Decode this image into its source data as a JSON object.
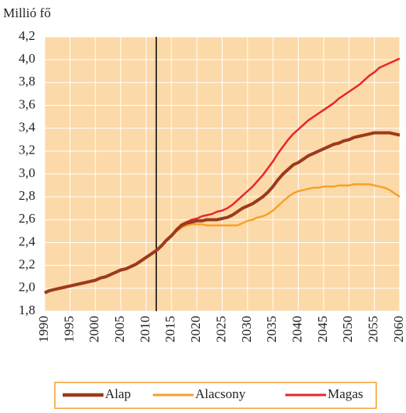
{
  "chart_data": {
    "type": "line",
    "y_axis_label": "Millió fő",
    "x": [
      1990,
      1991,
      1992,
      1993,
      1994,
      1995,
      1996,
      1997,
      1998,
      1999,
      2000,
      2001,
      2002,
      2003,
      2004,
      2005,
      2006,
      2007,
      2008,
      2009,
      2010,
      2011,
      2012,
      2013,
      2014,
      2015,
      2016,
      2017,
      2018,
      2019,
      2020,
      2021,
      2022,
      2023,
      2024,
      2025,
      2026,
      2027,
      2028,
      2029,
      2030,
      2031,
      2032,
      2033,
      2034,
      2035,
      2036,
      2037,
      2038,
      2039,
      2040,
      2041,
      2042,
      2043,
      2044,
      2045,
      2046,
      2047,
      2048,
      2049,
      2050,
      2051,
      2052,
      2053,
      2054,
      2055,
      2056,
      2057,
      2058,
      2059,
      2060
    ],
    "series": [
      {
        "name": "Magas",
        "color": "#e8262b",
        "values": [
          1.96,
          1.98,
          1.99,
          2.0,
          2.01,
          2.02,
          2.03,
          2.04,
          2.05,
          2.06,
          2.07,
          2.09,
          2.1,
          2.12,
          2.14,
          2.16,
          2.17,
          2.19,
          2.21,
          2.24,
          2.27,
          2.3,
          2.33,
          2.37,
          2.42,
          2.46,
          2.52,
          2.56,
          2.58,
          2.6,
          2.61,
          2.63,
          2.64,
          2.65,
          2.67,
          2.68,
          2.7,
          2.73,
          2.77,
          2.81,
          2.85,
          2.89,
          2.94,
          2.99,
          3.05,
          3.11,
          3.18,
          3.24,
          3.3,
          3.35,
          3.39,
          3.43,
          3.47,
          3.5,
          3.53,
          3.56,
          3.59,
          3.62,
          3.66,
          3.69,
          3.72,
          3.75,
          3.78,
          3.82,
          3.86,
          3.89,
          3.93,
          3.95,
          3.97,
          3.99,
          4.01
        ]
      },
      {
        "name": "Alacsony",
        "color": "#f7a12b",
        "values": [
          1.96,
          1.98,
          1.99,
          2.0,
          2.01,
          2.02,
          2.03,
          2.04,
          2.05,
          2.06,
          2.07,
          2.09,
          2.1,
          2.12,
          2.14,
          2.16,
          2.17,
          2.19,
          2.21,
          2.24,
          2.27,
          2.3,
          2.33,
          2.37,
          2.42,
          2.46,
          2.5,
          2.53,
          2.55,
          2.56,
          2.56,
          2.56,
          2.55,
          2.55,
          2.55,
          2.55,
          2.55,
          2.55,
          2.55,
          2.57,
          2.59,
          2.6,
          2.62,
          2.63,
          2.65,
          2.68,
          2.72,
          2.76,
          2.8,
          2.83,
          2.85,
          2.86,
          2.87,
          2.88,
          2.88,
          2.89,
          2.89,
          2.89,
          2.9,
          2.9,
          2.9,
          2.91,
          2.91,
          2.91,
          2.91,
          2.9,
          2.89,
          2.88,
          2.86,
          2.83,
          2.8
        ]
      },
      {
        "name": "Alap",
        "color": "#9c3a1c",
        "values": [
          1.96,
          1.98,
          1.99,
          2.0,
          2.01,
          2.02,
          2.03,
          2.04,
          2.05,
          2.06,
          2.07,
          2.09,
          2.1,
          2.12,
          2.14,
          2.16,
          2.17,
          2.19,
          2.21,
          2.24,
          2.27,
          2.3,
          2.33,
          2.37,
          2.42,
          2.46,
          2.51,
          2.55,
          2.57,
          2.58,
          2.59,
          2.59,
          2.6,
          2.6,
          2.6,
          2.61,
          2.62,
          2.64,
          2.67,
          2.7,
          2.72,
          2.74,
          2.77,
          2.8,
          2.84,
          2.89,
          2.95,
          3.0,
          3.04,
          3.08,
          3.1,
          3.13,
          3.16,
          3.18,
          3.2,
          3.22,
          3.24,
          3.26,
          3.27,
          3.29,
          3.3,
          3.32,
          3.33,
          3.34,
          3.35,
          3.36,
          3.36,
          3.36,
          3.36,
          3.35,
          3.34
        ]
      }
    ],
    "legend_order": [
      2,
      1,
      0
    ],
    "marker_x": 2012,
    "xlim": [
      1990,
      2060
    ],
    "xticks": [
      1990,
      1995,
      2000,
      2005,
      2010,
      2015,
      2020,
      2025,
      2030,
      2035,
      2040,
      2045,
      2050,
      2055,
      2060
    ],
    "ylim": [
      1.8,
      4.2
    ],
    "yticks": [
      {
        "value": 1.8,
        "label": "1,8"
      },
      {
        "value": 2.0,
        "label": "2,0"
      },
      {
        "value": 2.2,
        "label": "2,2"
      },
      {
        "value": 2.4,
        "label": "2,4"
      },
      {
        "value": 2.6,
        "label": "2,6"
      },
      {
        "value": 2.8,
        "label": "2,8"
      },
      {
        "value": 3.0,
        "label": "3,0"
      },
      {
        "value": 3.2,
        "label": "3,2"
      },
      {
        "value": 3.4,
        "label": "3,4"
      },
      {
        "value": 3.6,
        "label": "3,6"
      },
      {
        "value": 3.8,
        "label": "3,8"
      },
      {
        "value": 4.0,
        "label": "4,0"
      },
      {
        "value": 4.2,
        "label": "4,2"
      }
    ],
    "grid": true,
    "background": "#fcd9a8"
  }
}
